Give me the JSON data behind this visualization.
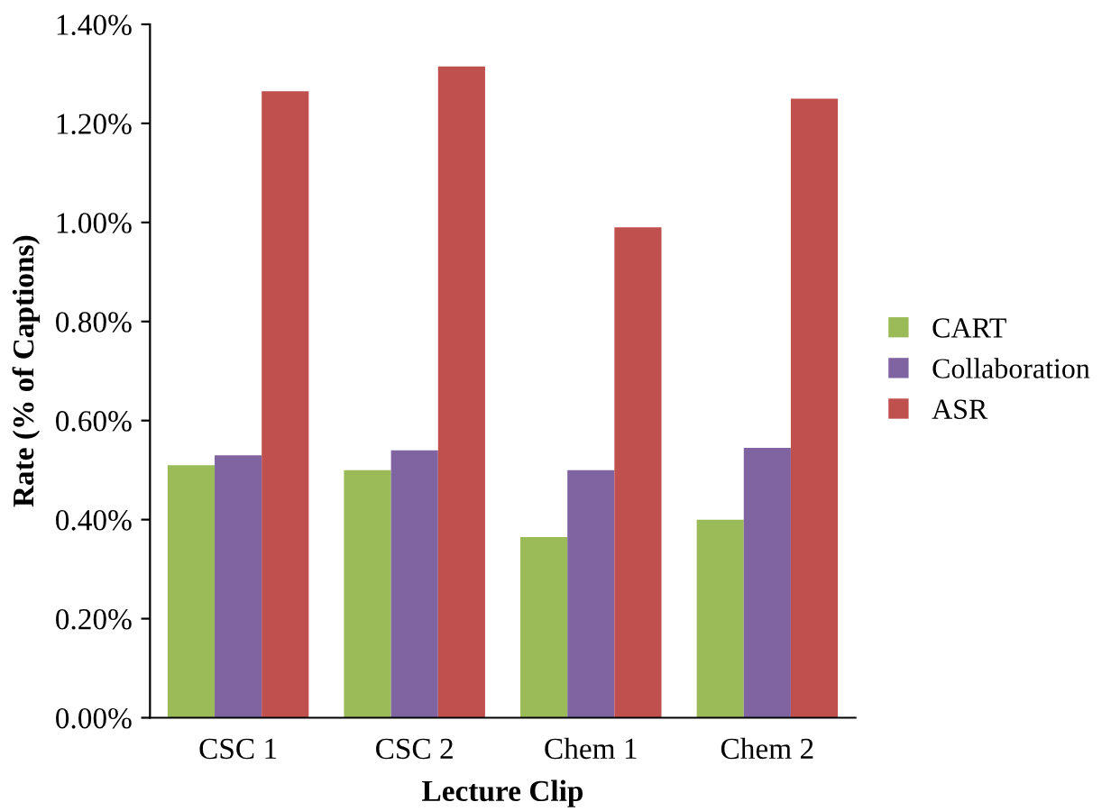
{
  "chart_data": {
    "type": "bar",
    "xlabel": "Lecture Clip",
    "ylabel": "Rate (% of Captions)",
    "categories": [
      "CSC 1",
      "CSC 2",
      "Chem 1",
      "Chem 2"
    ],
    "series": [
      {
        "name": "CART",
        "color": "#9bbb59",
        "values": [
          0.51,
          0.5,
          0.365,
          0.4
        ]
      },
      {
        "name": "Collaboration",
        "color": "#8064a2",
        "values": [
          0.53,
          0.54,
          0.5,
          0.545
        ]
      },
      {
        "name": "ASR",
        "color": "#c0504d",
        "values": [
          1.265,
          1.315,
          0.99,
          1.25
        ]
      }
    ],
    "ylim": [
      0,
      1.4
    ],
    "yticks": [
      {
        "value": 0,
        "label": "0.00%"
      },
      {
        "value": 0.2,
        "label": "0.20%"
      },
      {
        "value": 0.4,
        "label": "0.40%"
      },
      {
        "value": 0.6,
        "label": "0.60%"
      },
      {
        "value": 0.8,
        "label": "0.80%"
      },
      {
        "value": 1.0,
        "label": "1.00%"
      },
      {
        "value": 1.2,
        "label": "1.20%"
      },
      {
        "value": 1.4,
        "label": "1.40%"
      }
    ],
    "grid": false,
    "legend": "right"
  }
}
